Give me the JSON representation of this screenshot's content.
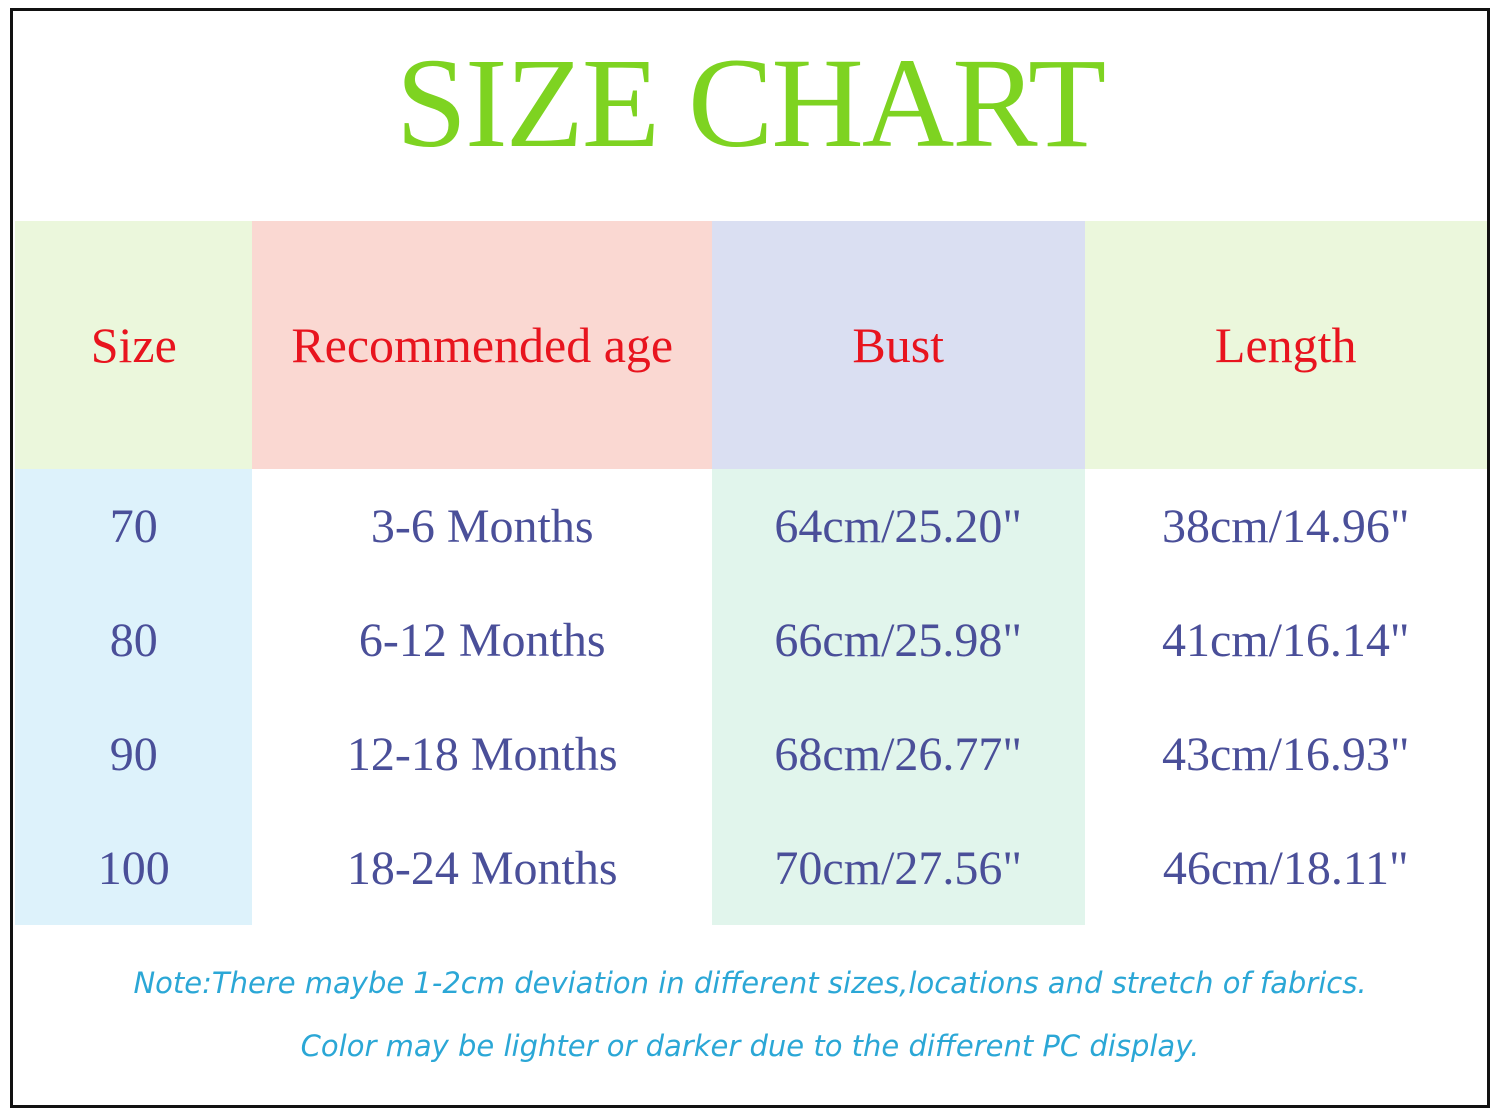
{
  "title": "SIZE CHART",
  "colors": {
    "title": "#7ed321",
    "header_text": "#e8141e",
    "cell_text": "#4a4f99",
    "note_text": "#2ba7d6"
  },
  "chart_data": {
    "type": "table",
    "title": "SIZE CHART",
    "columns": [
      "Size",
      "Recommended age",
      "Bust",
      "Length"
    ],
    "rows": [
      [
        "70",
        "3-6 Months",
        "64cm/25.20\"",
        "38cm/14.96\""
      ],
      [
        "80",
        "6-12 Months",
        "66cm/25.98\"",
        "41cm/16.14\""
      ],
      [
        "90",
        "12-18 Months",
        "68cm/26.77\"",
        "43cm/16.93\""
      ],
      [
        "100",
        "18-24 Months",
        "70cm/27.56\"",
        "46cm/18.11\""
      ]
    ]
  },
  "notes": [
    "Note:There maybe 1-2cm deviation in different sizes,locations and stretch of fabrics.",
    "Color may be lighter or darker due to the different PC display."
  ]
}
